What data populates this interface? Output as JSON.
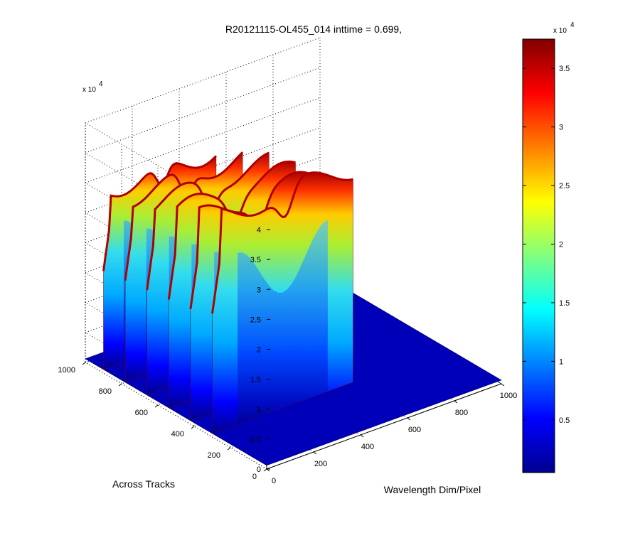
{
  "chart_data": {
    "type": "surface3d",
    "title": "R20121115-OL455_014 inttime = 0.699,",
    "xlabel": "Wavelength Dim/Pixel",
    "ylabel": "Across Tracks",
    "zlabel": "",
    "xlim": [
      0,
      1000
    ],
    "ylim": [
      0,
      1000
    ],
    "zlim": [
      0,
      40000
    ],
    "x_ticks": [
      "0",
      "200",
      "400",
      "600",
      "800",
      "1000"
    ],
    "y_ticks": [
      "0",
      "200",
      "400",
      "600",
      "800",
      "1000"
    ],
    "z_ticks": [
      "0",
      "0.5",
      "1",
      "1.5",
      "2",
      "2.5",
      "3",
      "3.5",
      "4"
    ],
    "z_multiplier": "x 10",
    "z_exponent": "4",
    "colormap": "jet",
    "colorbar": {
      "range": [
        500,
        37500
      ],
      "ticks": [
        "0.5",
        "1",
        "1.5",
        "2",
        "2.5",
        "3",
        "3.5"
      ],
      "multiplier": "x 10",
      "exponent": "4"
    },
    "grid": true,
    "bands": [
      {
        "across_track": 900,
        "wavelength_start": 0,
        "wavelength_end": 480,
        "peak": 31000
      },
      {
        "across_track": 780,
        "wavelength_start": 0,
        "wavelength_end": 500,
        "peak": 32000
      },
      {
        "across_track": 660,
        "wavelength_start": 0,
        "wavelength_end": 520,
        "peak": 33000
      },
      {
        "across_track": 540,
        "wavelength_start": 0,
        "wavelength_end": 540,
        "peak": 34000
      },
      {
        "across_track": 420,
        "wavelength_start": 0,
        "wavelength_end": 560,
        "peak": 35000
      },
      {
        "across_track": 300,
        "wavelength_start": 0,
        "wavelength_end": 600,
        "peak": 37500
      }
    ]
  }
}
